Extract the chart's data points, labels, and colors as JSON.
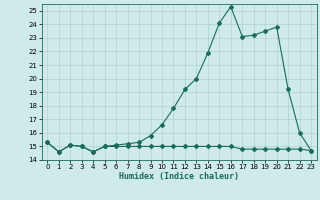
{
  "title": "",
  "xlabel": "Humidex (Indice chaleur)",
  "bg_color": "#ceeaea",
  "line_color": "#1a6b5a",
  "grid_color": "#aacaca",
  "xlim": [
    -0.5,
    23.5
  ],
  "ylim": [
    14,
    25.5
  ],
  "xticks": [
    0,
    1,
    2,
    3,
    4,
    5,
    6,
    7,
    8,
    9,
    10,
    11,
    12,
    13,
    14,
    15,
    16,
    17,
    18,
    19,
    20,
    21,
    22,
    23
  ],
  "yticks": [
    14,
    15,
    16,
    17,
    18,
    19,
    20,
    21,
    22,
    23,
    24,
    25
  ],
  "series1_x": [
    0,
    1,
    2,
    3,
    4,
    5,
    6,
    7,
    8,
    9,
    10,
    11,
    12,
    13,
    14,
    15,
    16,
    17,
    18,
    19,
    20,
    21,
    22,
    23
  ],
  "series1_y": [
    15.3,
    14.6,
    15.1,
    15.0,
    14.6,
    15.0,
    15.1,
    15.2,
    15.3,
    15.8,
    16.6,
    17.8,
    19.2,
    20.0,
    21.9,
    24.1,
    25.3,
    23.1,
    23.2,
    23.5,
    23.8,
    19.2,
    16.0,
    14.7
  ],
  "series2_x": [
    0,
    1,
    2,
    3,
    4,
    5,
    6,
    7,
    8,
    9,
    10,
    11,
    12,
    13,
    14,
    15,
    16,
    17,
    18,
    19,
    20,
    21,
    22,
    23
  ],
  "series2_y": [
    15.3,
    14.6,
    15.1,
    15.0,
    14.6,
    15.0,
    15.0,
    15.0,
    15.0,
    15.0,
    15.0,
    15.0,
    15.0,
    15.0,
    15.0,
    15.0,
    15.0,
    14.8,
    14.8,
    14.8,
    14.8,
    14.8,
    14.8,
    14.7
  ],
  "xlabel_fontsize": 6.0,
  "tick_fontsize": 5.0,
  "linewidth": 0.8,
  "markersize": 2.0
}
